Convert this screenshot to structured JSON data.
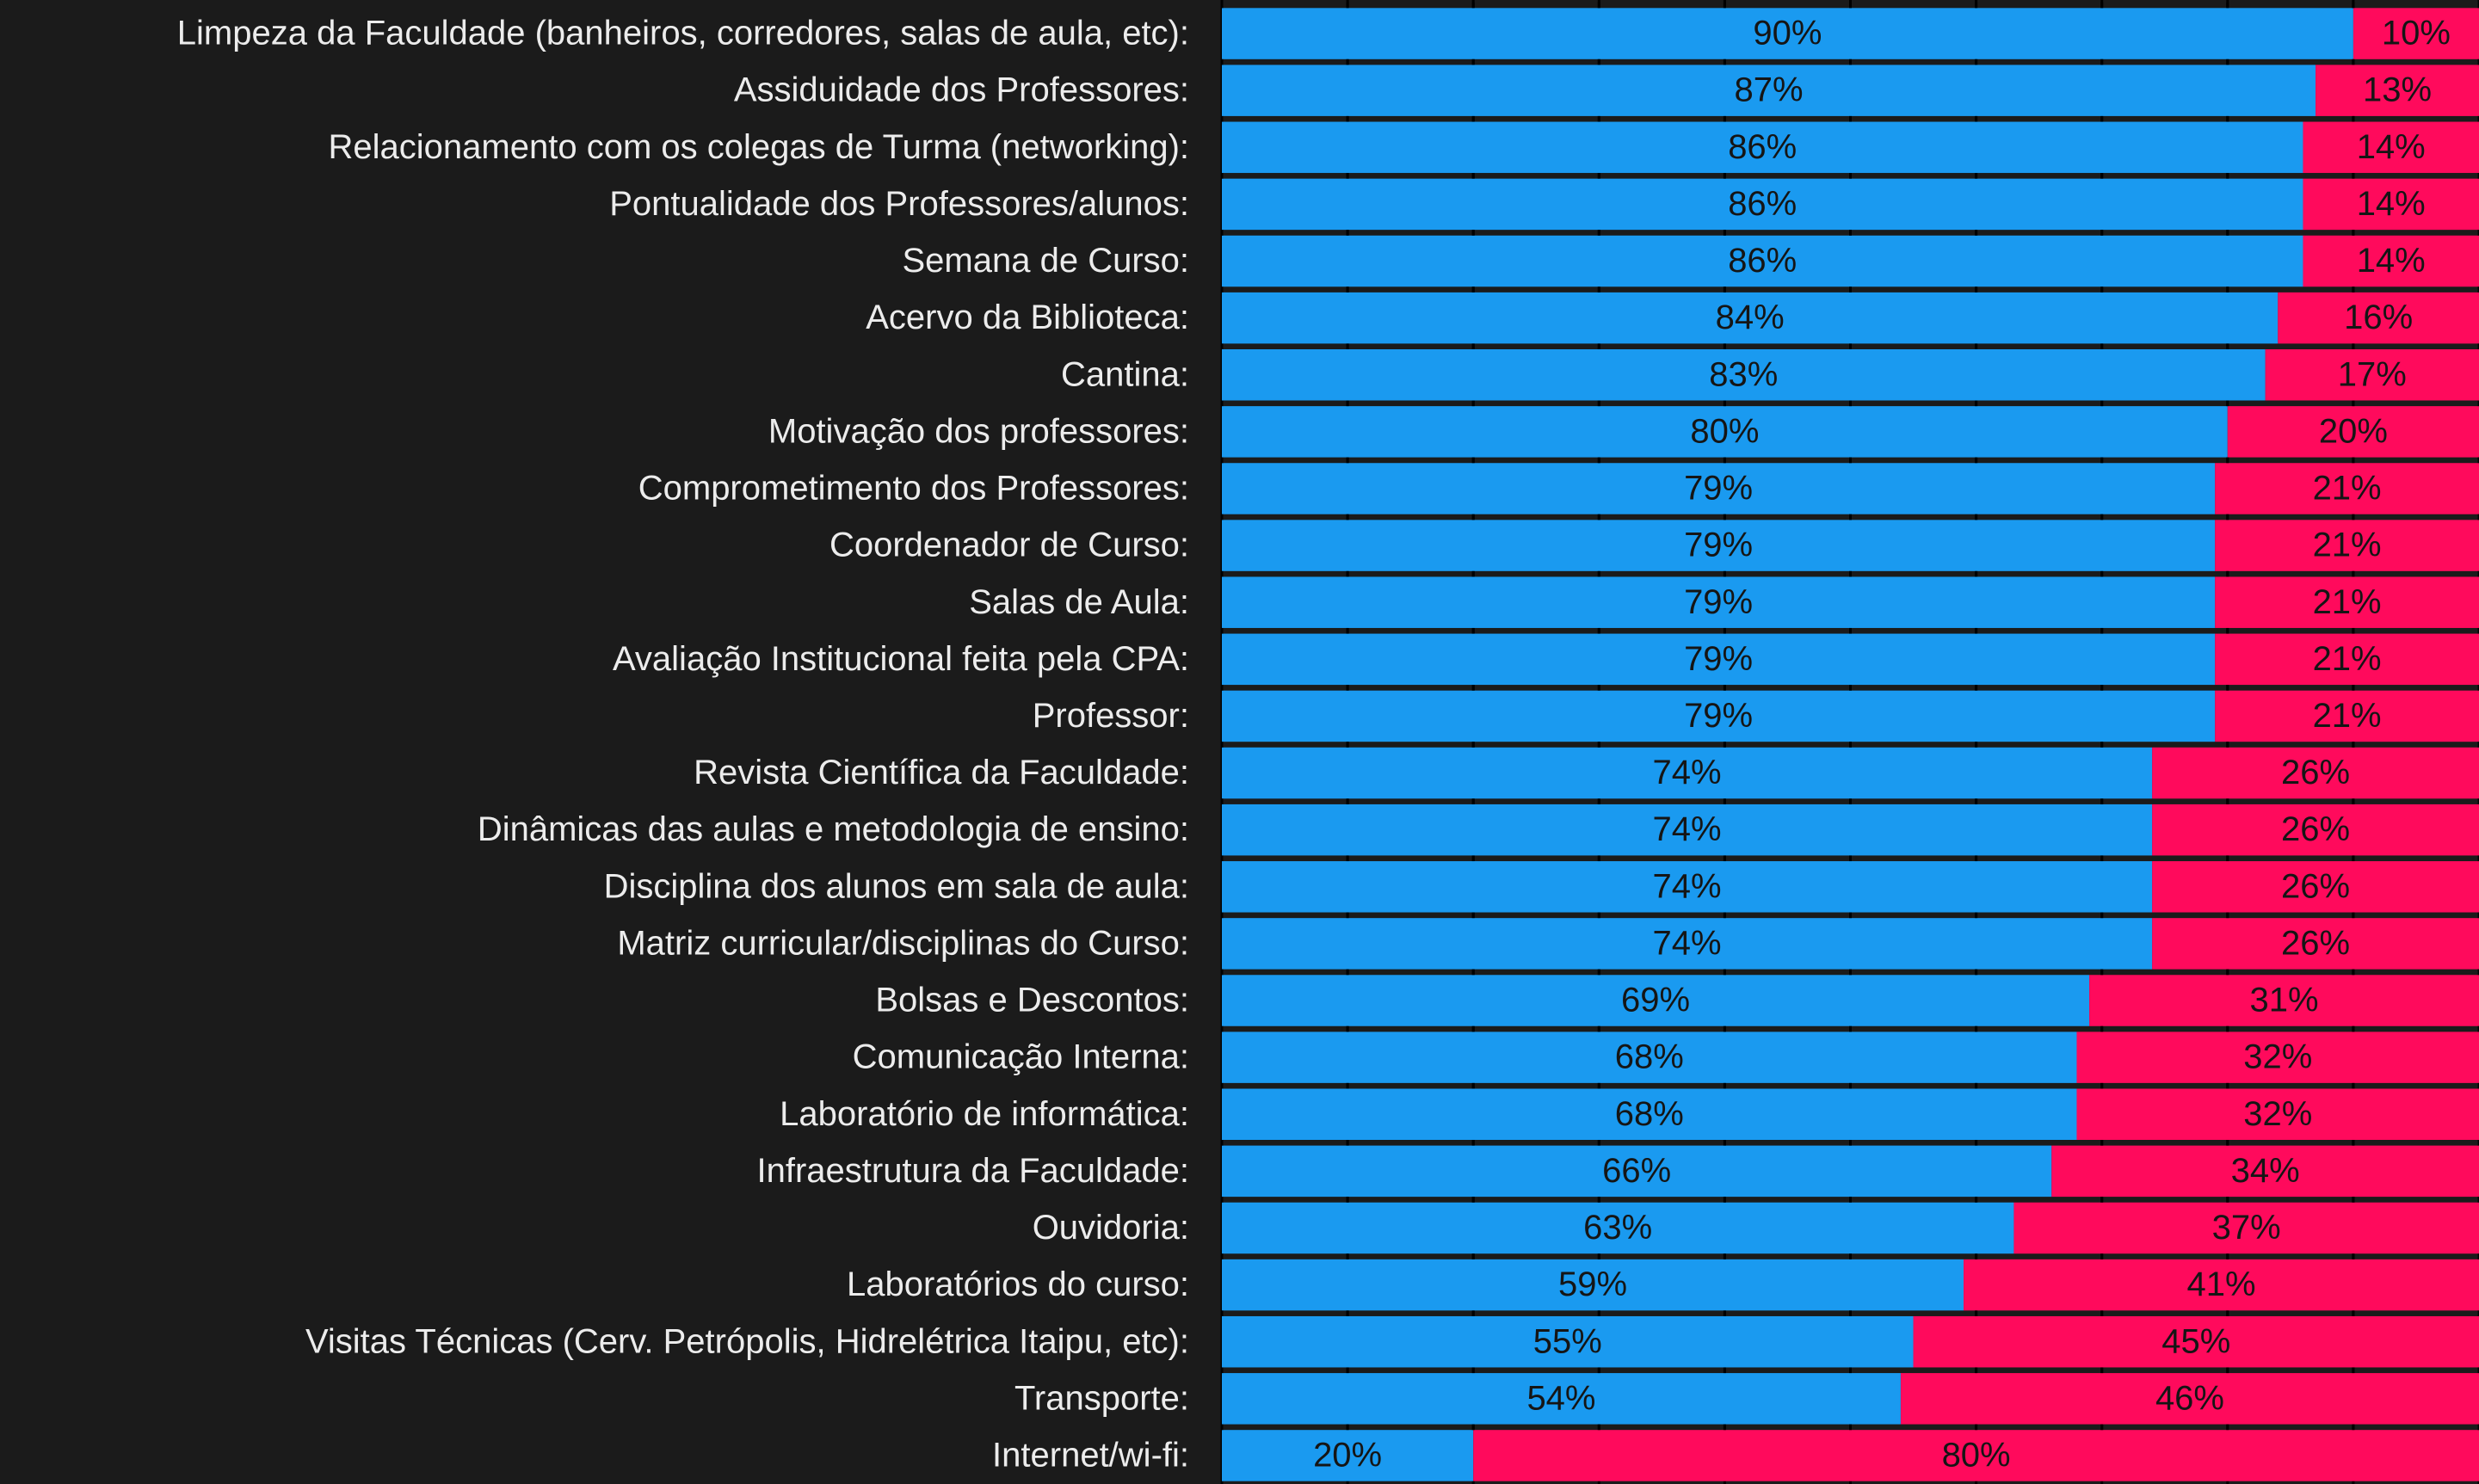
{
  "chart_data": {
    "type": "stacked-bar-horizontal",
    "categories": [
      "Limpeza da Faculdade (banheiros, corredores, salas de aula, etc):",
      "Assiduidade dos Professores:",
      "Relacionamento com os colegas de Turma (networking):",
      "Pontualidade dos Professores/alunos:",
      "Semana de Curso:",
      "Acervo da Biblioteca:",
      "Cantina:",
      "Motivação dos professores:",
      "Comprometimento dos Professores:",
      "Coordenador de Curso:",
      "Salas de Aula:",
      "Avaliação Institucional feita pela CPA:",
      "Professor:",
      "Revista Científica da Faculdade:",
      "Dinâmicas das aulas e metodologia de ensino:",
      "Disciplina dos alunos em sala de aula:",
      "Matriz curricular/disciplinas do Curso:",
      "Bolsas e Descontos:",
      "Comunicação Interna:",
      "Laboratório de informática:",
      "Infraestrutura da Faculdade:",
      "Ouvidoria:",
      "Laboratórios do curso:",
      "Visitas Técnicas (Cerv. Petrópolis, Hidrelétrica Itaipu, etc):",
      "Transporte:",
      "Internet/wi-fi:"
    ],
    "series": [
      {
        "color": "#1a9af0",
        "values": [
          90,
          87,
          86,
          86,
          86,
          84,
          83,
          80,
          79,
          79,
          79,
          79,
          79,
          74,
          74,
          74,
          74,
          69,
          68,
          68,
          66,
          63,
          59,
          55,
          54,
          20
        ],
        "value_labels": [
          "90%",
          "87%",
          "86%",
          "86%",
          "86%",
          "84%",
          "83%",
          "80%",
          "79%",
          "79%",
          "79%",
          "79%",
          "79%",
          "74%",
          "74%",
          "74%",
          "74%",
          "69%",
          "68%",
          "68%",
          "66%",
          "63%",
          "59%",
          "55%",
          "54%",
          "20%"
        ]
      },
      {
        "color": "#ff0a5c",
        "values": [
          10,
          13,
          14,
          14,
          14,
          16,
          17,
          20,
          21,
          21,
          21,
          21,
          21,
          26,
          26,
          26,
          26,
          31,
          32,
          32,
          34,
          37,
          41,
          45,
          46,
          80
        ],
        "value_labels": [
          "10%",
          "13%",
          "14%",
          "14%",
          "14%",
          "16%",
          "17%",
          "20%",
          "21%",
          "21%",
          "21%",
          "21%",
          "21%",
          "26%",
          "26%",
          "26%",
          "26%",
          "31%",
          "32%",
          "32%",
          "34%",
          "37%",
          "41%",
          "45%",
          "46%",
          "80%"
        ]
      }
    ],
    "xlim": [
      0,
      100
    ],
    "xticks": [
      0,
      10,
      20,
      30,
      40,
      50,
      60,
      70,
      80,
      90,
      100
    ],
    "grid": true
  }
}
